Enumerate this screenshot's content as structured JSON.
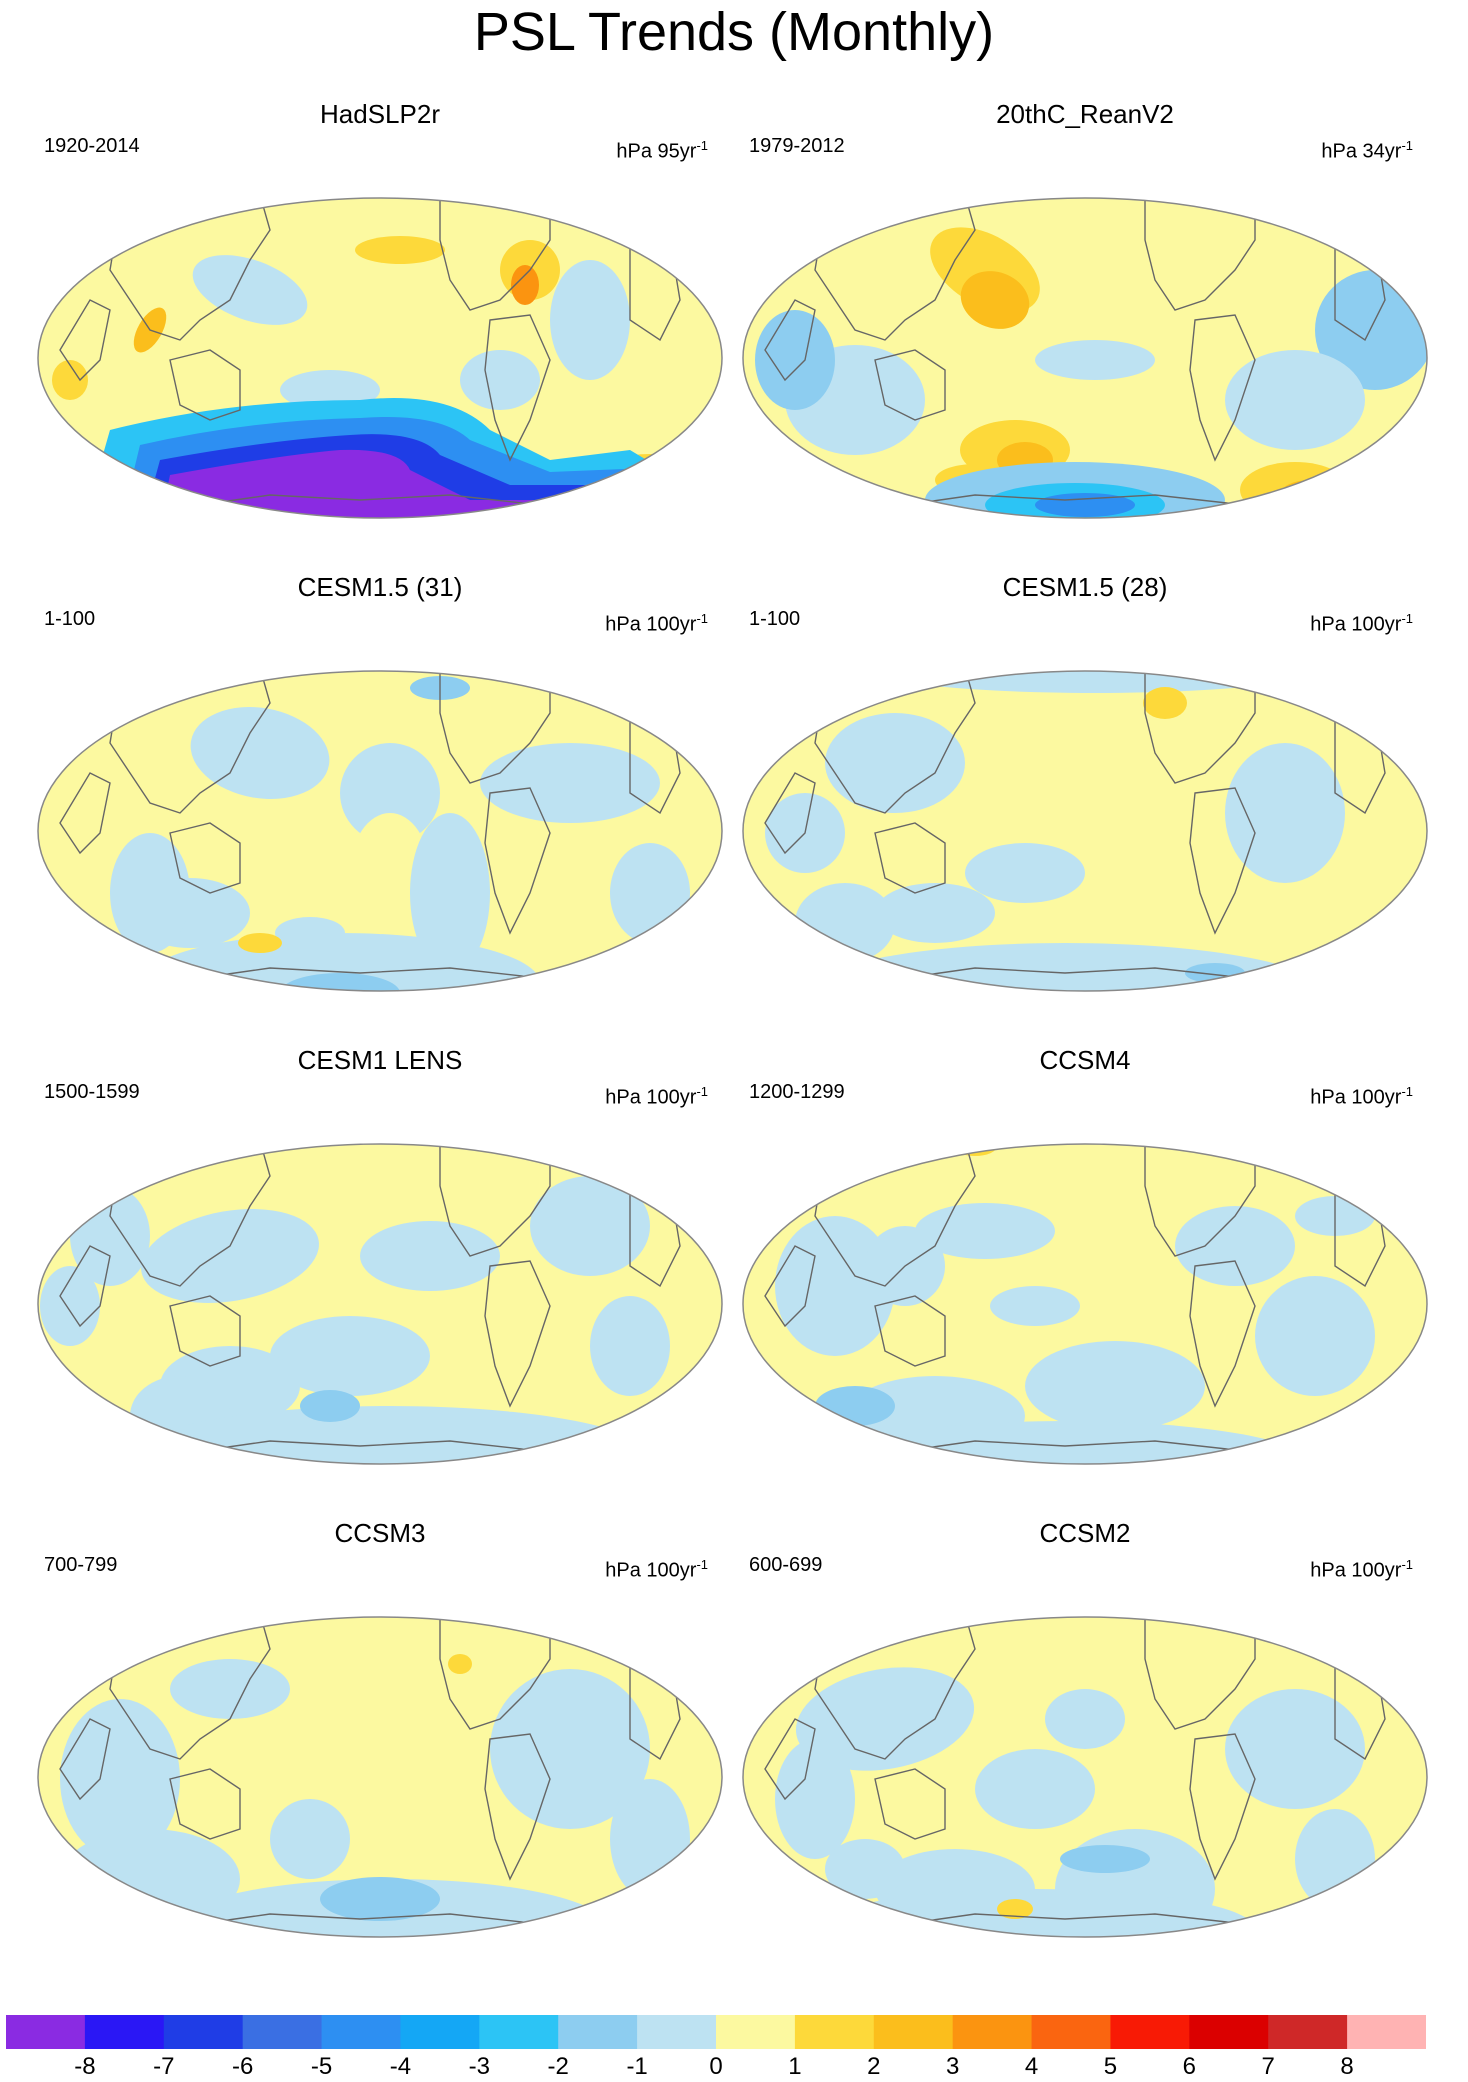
{
  "title": "PSL Trends (Monthly)",
  "colors": {
    "bins": [
      "#8a2be2",
      "#2a17f5",
      "#1f3de6",
      "#3a6fe3",
      "#2d8ff2",
      "#14a7f5",
      "#2cc4f5",
      "#8dcdf0",
      "#bde2f2",
      "#fcf9a0",
      "#fdd93a",
      "#fbbe1c",
      "#fb9410",
      "#fa6510",
      "#f81a05",
      "#db0000",
      "#cf2828",
      "#ffb3b3"
    ],
    "land_outline": "#666666",
    "map_border": "#888888"
  },
  "panels": [
    {
      "title": "HadSLP2r",
      "period": "1920-2014",
      "units": "hPa 95yr",
      "exp": "-1"
    },
    {
      "title": "20thC_ReanV2",
      "period": "1979-2012",
      "units": "hPa 34yr",
      "exp": "-1"
    },
    {
      "title": "CESM1.5 (31)",
      "period": "1-100",
      "units": "hPa 100yr",
      "exp": "-1"
    },
    {
      "title": "CESM1.5 (28)",
      "period": "1-100",
      "units": "hPa 100yr",
      "exp": "-1"
    },
    {
      "title": "CESM1 LENS",
      "period": "1500-1599",
      "units": "hPa 100yr",
      "exp": "-1"
    },
    {
      "title": "CCSM4",
      "period": "1200-1299",
      "units": "hPa 100yr",
      "exp": "-1"
    },
    {
      "title": "CCSM3",
      "period": "700-799",
      "units": "hPa 100yr",
      "exp": "-1"
    },
    {
      "title": "CCSM2",
      "period": "600-699",
      "units": "hPa 100yr",
      "exp": "-1"
    }
  ],
  "colorbar": {
    "labels": [
      "-8",
      "-7",
      "-6",
      "-5",
      "-4",
      "-3",
      "-2",
      "-1",
      "0",
      "1",
      "2",
      "3",
      "4",
      "5",
      "6",
      "7",
      "8"
    ]
  }
}
